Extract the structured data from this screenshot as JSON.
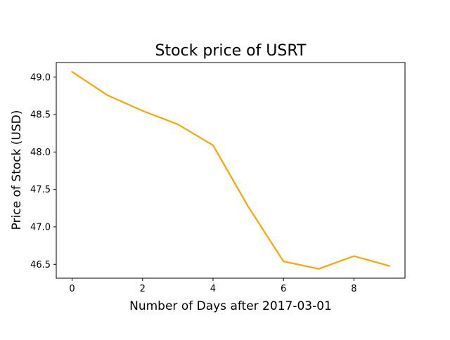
{
  "chart_data": {
    "type": "line",
    "title": "Stock price of USRT",
    "xlabel": "Number of Days after 2017-03-01",
    "ylabel": "Price of Stock (USD)",
    "x": [
      0,
      1,
      2,
      3,
      4,
      5,
      6,
      7,
      8,
      9
    ],
    "series": [
      {
        "values": [
          49.07,
          48.76,
          48.55,
          48.37,
          48.09,
          47.27,
          46.54,
          46.44,
          46.61,
          46.48
        ],
        "color": "#FFA500"
      }
    ],
    "xlim": [
      -0.45,
      9.45
    ],
    "ylim": [
      46.315,
      49.195
    ],
    "xticks": [
      0,
      2,
      4,
      6,
      8
    ],
    "xtick_labels": [
      "0",
      "2",
      "4",
      "6",
      "8"
    ],
    "yticks": [
      46.5,
      47.0,
      47.5,
      48.0,
      48.5,
      49.0
    ],
    "ytick_labels": [
      "46.5",
      "47.0",
      "47.5",
      "48.0",
      "48.5",
      "49.0"
    ],
    "grid": false,
    "legend": false
  }
}
